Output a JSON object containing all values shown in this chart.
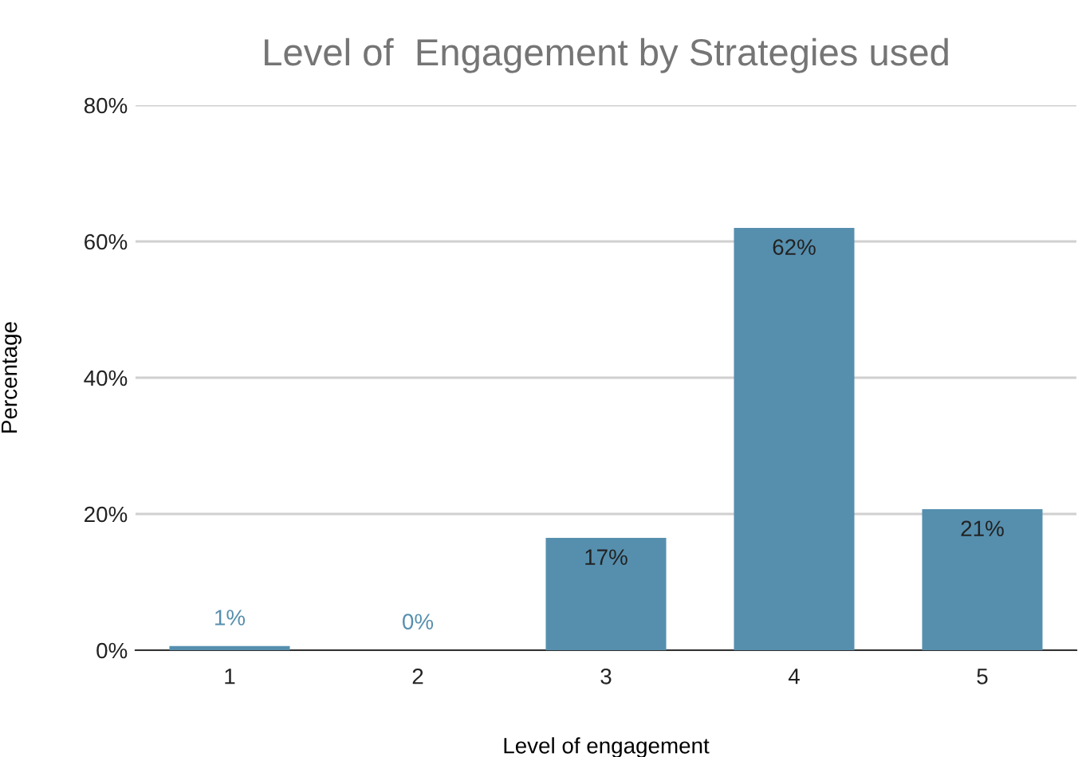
{
  "chart_data": {
    "type": "bar",
    "title": "Level of  Engagement by Strategies used",
    "xlabel": "Level of engagement",
    "ylabel": "Percentage",
    "categories": [
      "1",
      "2",
      "3",
      "4",
      "5"
    ],
    "values": [
      0.6,
      0,
      16.5,
      62,
      20.7
    ],
    "value_labels": [
      "1%",
      "0%",
      "17%",
      "62%",
      "21%"
    ],
    "color": "#568fae",
    "ylim": [
      0,
      80
    ],
    "yticks": [
      {
        "value": 0,
        "label": "0%"
      },
      {
        "value": 20,
        "label": "20%"
      },
      {
        "value": 40,
        "label": "40%"
      },
      {
        "value": 60,
        "label": "60%"
      },
      {
        "value": 80,
        "label": "80%"
      }
    ],
    "grid": "y",
    "legend": false
  }
}
